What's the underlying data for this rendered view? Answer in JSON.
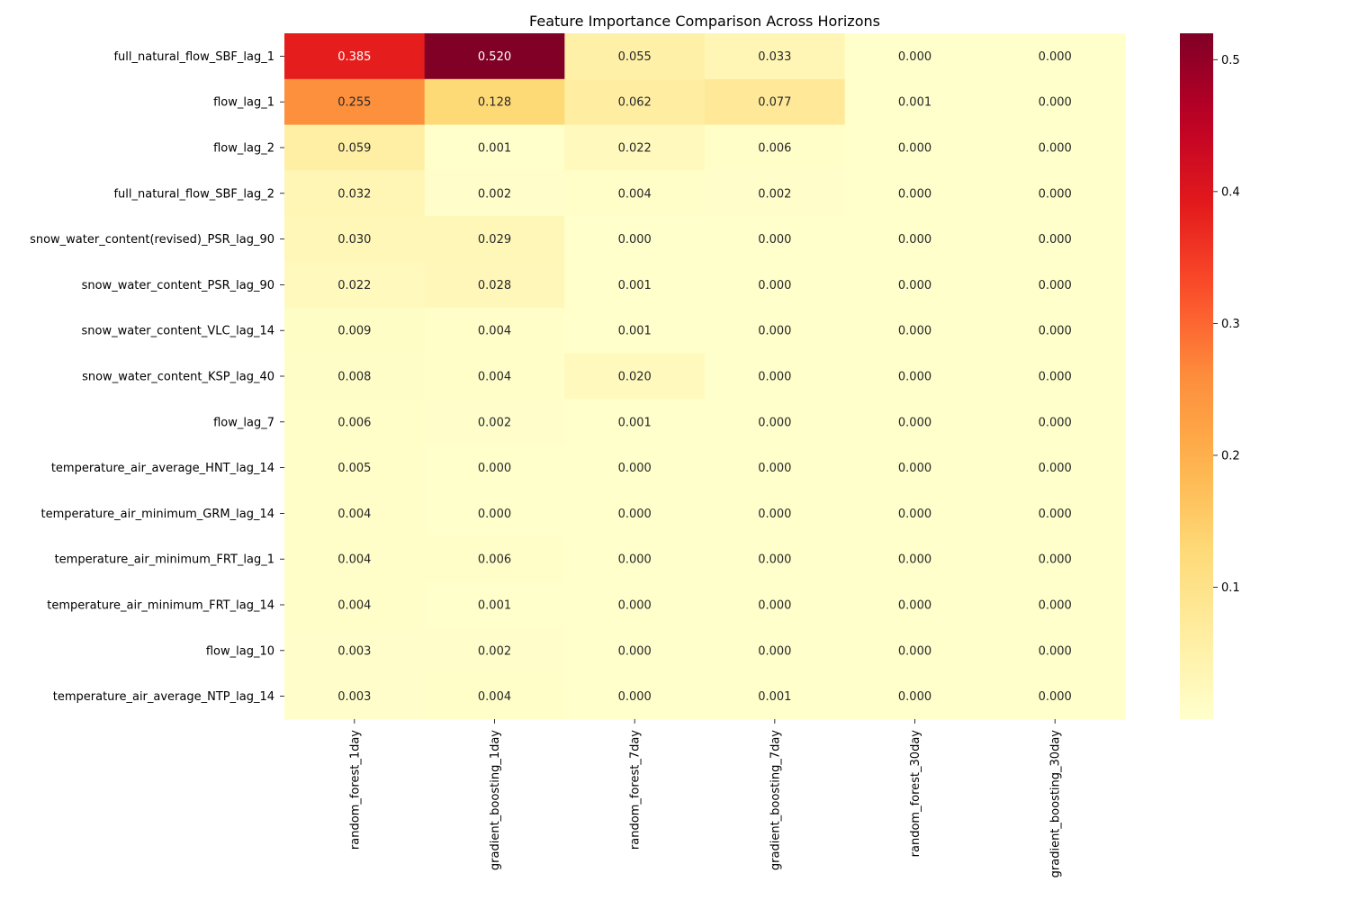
{
  "chart_data": {
    "type": "heatmap",
    "title": "Feature Importance Comparison Across Horizons",
    "xlabel": "",
    "ylabel": "",
    "columns": [
      "random_forest_1day",
      "gradient_boosting_1day",
      "random_forest_7day",
      "gradient_boosting_7day",
      "random_forest_30day",
      "gradient_boosting_30day"
    ],
    "rows": [
      "full_natural_flow_SBF_lag_1",
      "flow_lag_1",
      "flow_lag_2",
      "full_natural_flow_SBF_lag_2",
      "snow_water_content(revised)_PSR_lag_90",
      "snow_water_content_PSR_lag_90",
      "snow_water_content_VLC_lag_14",
      "snow_water_content_KSP_lag_40",
      "flow_lag_7",
      "temperature_air_average_HNT_lag_14",
      "temperature_air_minimum_GRM_lag_14",
      "temperature_air_minimum_FRT_lag_1",
      "temperature_air_minimum_FRT_lag_14",
      "flow_lag_10",
      "temperature_air_average_NTP_lag_14"
    ],
    "values": [
      [
        0.385,
        0.52,
        0.055,
        0.033,
        0.0,
        0.0
      ],
      [
        0.255,
        0.128,
        0.062,
        0.077,
        0.001,
        0.0
      ],
      [
        0.059,
        0.001,
        0.022,
        0.006,
        0.0,
        0.0
      ],
      [
        0.032,
        0.002,
        0.004,
        0.002,
        0.0,
        0.0
      ],
      [
        0.03,
        0.029,
        0.0,
        0.0,
        0.0,
        0.0
      ],
      [
        0.022,
        0.028,
        0.001,
        0.0,
        0.0,
        0.0
      ],
      [
        0.009,
        0.004,
        0.001,
        0.0,
        0.0,
        0.0
      ],
      [
        0.008,
        0.004,
        0.02,
        0.0,
        0.0,
        0.0
      ],
      [
        0.006,
        0.002,
        0.001,
        0.0,
        0.0,
        0.0
      ],
      [
        0.005,
        0.0,
        0.0,
        0.0,
        0.0,
        0.0
      ],
      [
        0.004,
        0.0,
        0.0,
        0.0,
        0.0,
        0.0
      ],
      [
        0.004,
        0.006,
        0.0,
        0.0,
        0.0,
        0.0
      ],
      [
        0.004,
        0.001,
        0.0,
        0.0,
        0.0,
        0.0
      ],
      [
        0.003,
        0.002,
        0.0,
        0.0,
        0.0,
        0.0
      ],
      [
        0.003,
        0.004,
        0.0,
        0.001,
        0.0,
        0.0
      ]
    ],
    "value_format": "0.000",
    "colormap": "YlOrRd",
    "vmin": 0.0,
    "vmax": 0.52,
    "colorbar_ticks": [
      0.1,
      0.2,
      0.3,
      0.4,
      0.5
    ],
    "colorbar_tick_labels": [
      "0.1",
      "0.2",
      "0.3",
      "0.4",
      "0.5"
    ],
    "annotations": true,
    "grid": false,
    "colorbar_placement": "right"
  }
}
